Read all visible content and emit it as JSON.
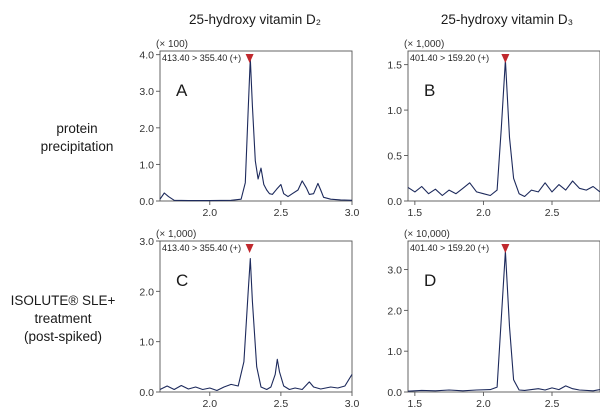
{
  "figure": {
    "column_titles": [
      "25-hydroxy vitamin D₂",
      "25-hydroxy vitamin D₃"
    ],
    "row_labels": [
      [
        "protein",
        "precipitation"
      ],
      [
        "ISOLUTE® SLE+",
        "treatment",
        "(post-spiked)"
      ]
    ],
    "accent_color": "#1d2a5c",
    "marker_color": "#c0282d"
  },
  "chart_data": [
    {
      "type": "line",
      "panel": "A",
      "mrm": "413.40 > 355.40 (+)",
      "multiplier": "(× 100)",
      "xlim": [
        1.65,
        3.0
      ],
      "ylim": [
        0,
        4.1
      ],
      "xticks": [
        2.0,
        2.5,
        3.0
      ],
      "xtick_labels": [
        "2.0",
        "2.5",
        "3.0"
      ],
      "yticks": [
        0,
        1,
        2,
        3,
        4
      ],
      "ytick_labels": [
        "0.0",
        "1.0",
        "2.0",
        "3.0",
        "4.0"
      ],
      "peak_x": 2.28,
      "points": [
        [
          1.65,
          0.05
        ],
        [
          1.68,
          0.22
        ],
        [
          1.71,
          0.12
        ],
        [
          1.75,
          0.02
        ],
        [
          1.85,
          0.01
        ],
        [
          2.0,
          0.01
        ],
        [
          2.15,
          0.02
        ],
        [
          2.22,
          0.05
        ],
        [
          2.25,
          0.5
        ],
        [
          2.27,
          2.5
        ],
        [
          2.285,
          3.9
        ],
        [
          2.3,
          2.6
        ],
        [
          2.32,
          1.1
        ],
        [
          2.34,
          0.6
        ],
        [
          2.36,
          0.9
        ],
        [
          2.38,
          0.45
        ],
        [
          2.4,
          0.3
        ],
        [
          2.42,
          0.2
        ],
        [
          2.44,
          0.18
        ],
        [
          2.47,
          0.32
        ],
        [
          2.5,
          0.45
        ],
        [
          2.52,
          0.2
        ],
        [
          2.55,
          0.12
        ],
        [
          2.58,
          0.2
        ],
        [
          2.62,
          0.3
        ],
        [
          2.65,
          0.55
        ],
        [
          2.68,
          0.35
        ],
        [
          2.7,
          0.18
        ],
        [
          2.73,
          0.2
        ],
        [
          2.76,
          0.48
        ],
        [
          2.78,
          0.3
        ],
        [
          2.8,
          0.1
        ],
        [
          2.85,
          0.05
        ],
        [
          2.92,
          0.03
        ],
        [
          3.0,
          0.02
        ]
      ]
    },
    {
      "type": "line",
      "panel": "B",
      "mrm": "401.40 > 159.20 (+)",
      "multiplier": "(× 1,000)",
      "xlim": [
        1.45,
        2.85
      ],
      "ylim": [
        0,
        1.65
      ],
      "xticks": [
        1.5,
        2.0,
        2.5
      ],
      "xtick_labels": [
        "1.5",
        "2.0",
        "2.5"
      ],
      "yticks": [
        0,
        0.5,
        1.0,
        1.5
      ],
      "ytick_labels": [
        "0.0",
        "0.5",
        "1.0",
        "1.5"
      ],
      "peak_x": 2.16,
      "points": [
        [
          1.45,
          0.15
        ],
        [
          1.5,
          0.1
        ],
        [
          1.55,
          0.16
        ],
        [
          1.6,
          0.08
        ],
        [
          1.65,
          0.13
        ],
        [
          1.7,
          0.06
        ],
        [
          1.75,
          0.12
        ],
        [
          1.8,
          0.08
        ],
        [
          1.85,
          0.14
        ],
        [
          1.9,
          0.2
        ],
        [
          1.95,
          0.1
        ],
        [
          2.0,
          0.08
        ],
        [
          2.05,
          0.06
        ],
        [
          2.1,
          0.12
        ],
        [
          2.13,
          0.8
        ],
        [
          2.16,
          1.55
        ],
        [
          2.19,
          0.7
        ],
        [
          2.22,
          0.25
        ],
        [
          2.26,
          0.08
        ],
        [
          2.3,
          0.05
        ],
        [
          2.35,
          0.12
        ],
        [
          2.4,
          0.1
        ],
        [
          2.45,
          0.2
        ],
        [
          2.5,
          0.1
        ],
        [
          2.55,
          0.18
        ],
        [
          2.6,
          0.12
        ],
        [
          2.65,
          0.22
        ],
        [
          2.7,
          0.14
        ],
        [
          2.75,
          0.12
        ],
        [
          2.8,
          0.16
        ],
        [
          2.85,
          0.1
        ]
      ]
    },
    {
      "type": "line",
      "panel": "C",
      "mrm": "413.40 > 355.40 (+)",
      "multiplier": "(× 1,000)",
      "xlim": [
        1.65,
        3.0
      ],
      "ylim": [
        0,
        3.0
      ],
      "xticks": [
        2.0,
        2.5,
        3.0
      ],
      "xtick_labels": [
        "2.0",
        "2.5",
        "3.0"
      ],
      "yticks": [
        0,
        1,
        2,
        3
      ],
      "ytick_labels": [
        "0.0",
        "1.0",
        "2.0",
        "3.0"
      ],
      "peak_x": 2.28,
      "points": [
        [
          1.65,
          0.05
        ],
        [
          1.7,
          0.12
        ],
        [
          1.75,
          0.05
        ],
        [
          1.8,
          0.13
        ],
        [
          1.85,
          0.06
        ],
        [
          1.9,
          0.1
        ],
        [
          1.95,
          0.05
        ],
        [
          2.0,
          0.08
        ],
        [
          2.05,
          0.03
        ],
        [
          2.1,
          0.1
        ],
        [
          2.15,
          0.15
        ],
        [
          2.2,
          0.12
        ],
        [
          2.24,
          0.6
        ],
        [
          2.27,
          2.0
        ],
        [
          2.285,
          2.65
        ],
        [
          2.3,
          1.8
        ],
        [
          2.33,
          0.5
        ],
        [
          2.36,
          0.1
        ],
        [
          2.4,
          0.05
        ],
        [
          2.43,
          0.1
        ],
        [
          2.46,
          0.35
        ],
        [
          2.475,
          0.65
        ],
        [
          2.49,
          0.4
        ],
        [
          2.52,
          0.12
        ],
        [
          2.56,
          0.05
        ],
        [
          2.6,
          0.08
        ],
        [
          2.65,
          0.05
        ],
        [
          2.7,
          0.2
        ],
        [
          2.73,
          0.1
        ],
        [
          2.78,
          0.06
        ],
        [
          2.85,
          0.1
        ],
        [
          2.9,
          0.08
        ],
        [
          2.95,
          0.12
        ],
        [
          3.0,
          0.35
        ]
      ]
    },
    {
      "type": "line",
      "panel": "D",
      "mrm": "401.40 > 159.20 (+)",
      "multiplier": "(× 10,000)",
      "xlim": [
        1.45,
        2.85
      ],
      "ylim": [
        0,
        3.7
      ],
      "xticks": [
        1.5,
        2.0,
        2.5
      ],
      "xtick_labels": [
        "1.5",
        "2.0",
        "2.5"
      ],
      "yticks": [
        0,
        1,
        2,
        3
      ],
      "ytick_labels": [
        "0.0",
        "1.0",
        "2.0",
        "3.0"
      ],
      "peak_x": 2.16,
      "points": [
        [
          1.45,
          0.02
        ],
        [
          1.55,
          0.04
        ],
        [
          1.65,
          0.03
        ],
        [
          1.75,
          0.05
        ],
        [
          1.85,
          0.03
        ],
        [
          1.95,
          0.05
        ],
        [
          2.05,
          0.06
        ],
        [
          2.1,
          0.12
        ],
        [
          2.13,
          1.8
        ],
        [
          2.16,
          3.45
        ],
        [
          2.19,
          1.6
        ],
        [
          2.22,
          0.3
        ],
        [
          2.26,
          0.05
        ],
        [
          2.3,
          0.04
        ],
        [
          2.4,
          0.08
        ],
        [
          2.45,
          0.05
        ],
        [
          2.5,
          0.1
        ],
        [
          2.55,
          0.06
        ],
        [
          2.6,
          0.15
        ],
        [
          2.65,
          0.08
        ],
        [
          2.7,
          0.05
        ],
        [
          2.8,
          0.03
        ],
        [
          2.85,
          0.06
        ]
      ]
    }
  ]
}
